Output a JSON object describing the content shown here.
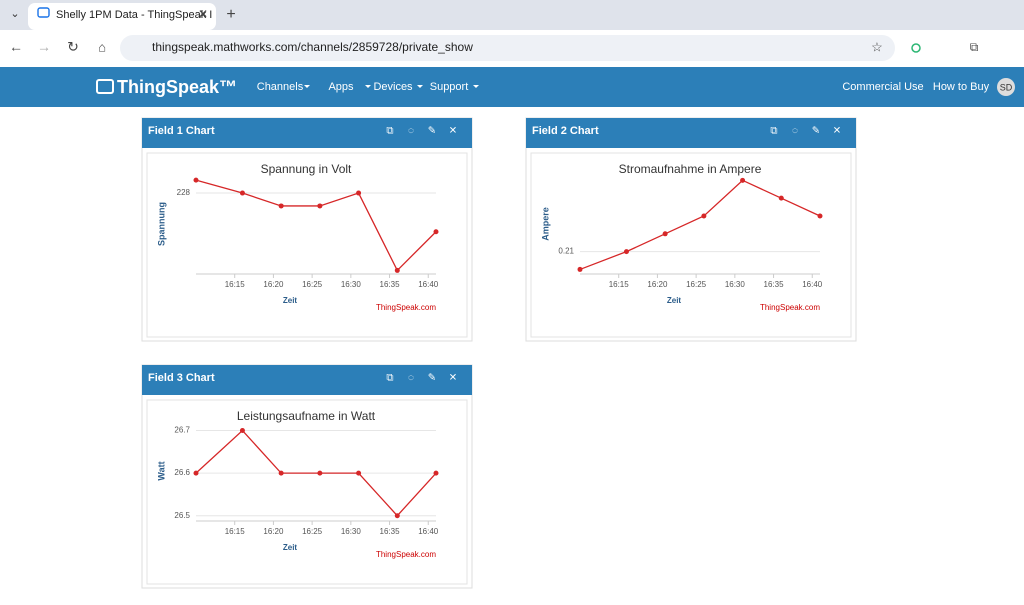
{
  "browser": {
    "tab_title": "Shelly 1PM Data - ThingSpeak I",
    "url": "thingspeak.mathworks.com/channels/2859728/private_show"
  },
  "nav": {
    "brand": "ThingSpeak™",
    "menus": [
      "Channels",
      "Apps",
      "Devices",
      "Support"
    ],
    "right": [
      "Commercial Use",
      "How to Buy"
    ],
    "avatar": "SD"
  },
  "panels": [
    "Field 1 Chart",
    "Field 2 Chart",
    "Field 3 Chart"
  ],
  "chart_data": [
    {
      "type": "line",
      "title": "Spannung in Volt",
      "x_label": "Zeit",
      "y_label": "Spannung",
      "credit": "ThingSpeak.com",
      "color": "#d62728",
      "x": [
        "16:10",
        "16:16",
        "16:21",
        "16:26",
        "16:31",
        "16:36",
        "16:41"
      ],
      "values": [
        229,
        228,
        227,
        227,
        228,
        222,
        225
      ],
      "xlim": [
        "16:10",
        "16:41"
      ],
      "xticks": [
        "16:15",
        "16:20",
        "16:25",
        "16:30",
        "16:35",
        "16:40"
      ],
      "ylim": [
        221.8,
        229.4
      ],
      "yticks": [
        228
      ],
      "grid": true
    },
    {
      "type": "line",
      "title": "Stromaufnahme in Ampere",
      "x_label": "Zeit",
      "y_label": "Ampere",
      "credit": "ThingSpeak.com",
      "color": "#d62728",
      "x": [
        "16:10",
        "16:16",
        "16:21",
        "16:26",
        "16:31",
        "16:36",
        "16:41"
      ],
      "values": [
        0.2,
        0.21,
        0.22,
        0.23,
        0.25,
        0.24,
        0.23
      ],
      "xlim": [
        "16:10",
        "16:41"
      ],
      "xticks": [
        "16:15",
        "16:20",
        "16:25",
        "16:30",
        "16:35",
        "16:40"
      ],
      "ylim": [
        0.198,
        0.253
      ],
      "yticks": [
        0.21
      ],
      "grid": true
    },
    {
      "type": "line",
      "title": "Leistungsaufname in Watt",
      "x_label": "Zeit",
      "y_label": "Watt",
      "credit": "ThingSpeak.com",
      "color": "#d62728",
      "x": [
        "16:10",
        "16:16",
        "16:21",
        "16:26",
        "16:31",
        "16:36",
        "16:41"
      ],
      "values": [
        26.6,
        26.7,
        26.6,
        26.6,
        26.6,
        26.5,
        26.6
      ],
      "xlim": [
        "16:10",
        "16:41"
      ],
      "xticks": [
        "16:15",
        "16:20",
        "16:25",
        "16:30",
        "16:35",
        "16:40"
      ],
      "ylim": [
        26.49,
        26.72
      ],
      "yticks": [
        26.5,
        26.6,
        26.7
      ],
      "grid": true
    }
  ]
}
